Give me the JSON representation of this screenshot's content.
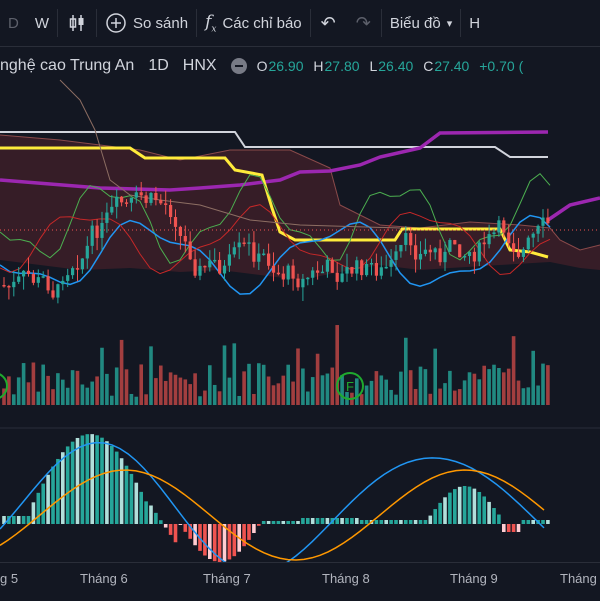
{
  "toolbar": {
    "interval_d": "D",
    "interval_w": "W",
    "compare_label": "So sánh",
    "indicators_label": "Các chỉ báo",
    "chart_type_label": "Biểu đồ",
    "cut_label": "H"
  },
  "legend": {
    "symbol_name": "nghệ cao Trung An",
    "interval": "1D",
    "exchange": "HNX",
    "open_label": "O",
    "open": "26.90",
    "high_label": "H",
    "high": "27.80",
    "low_label": "L",
    "low": "26.40",
    "close_label": "C",
    "close": "27.40",
    "change": "+0.70 ("
  },
  "markers": {
    "split_label": "F"
  },
  "xaxis": {
    "labels": [
      "g 5",
      "Tháng 6",
      "Tháng 7",
      "Tháng 8",
      "Tháng 9",
      "Tháng"
    ]
  },
  "colors": {
    "background": "#131722",
    "up": "#26a69a",
    "down": "#ef5350",
    "kijun_yellow": "#ffeb3b",
    "cloud_purple": "#9c27b0",
    "line_white": "#d1d4dc",
    "macd_blue": "#2196f3",
    "signal_orange": "#ff9800"
  }
}
